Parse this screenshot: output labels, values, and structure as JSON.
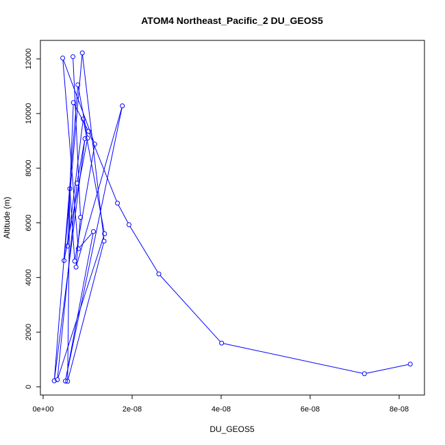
{
  "chart_data": {
    "type": "line",
    "title": "ATOM4 Northeast_Pacific_2 DU_GEOS5",
    "xlabel": "DU_GEOS5",
    "ylabel": "Altitude (m)",
    "xlim": [
      0,
      8.6e-08
    ],
    "ylim": [
      0,
      12400
    ],
    "xticks": [
      0,
      2e-08,
      4e-08,
      6e-08,
      8e-08
    ],
    "xtick_labels": [
      "0e+00",
      "2e-08",
      "4e-08",
      "6e-08",
      "8e-08"
    ],
    "yticks": [
      0,
      2000,
      4000,
      6000,
      8000,
      10000,
      12000
    ],
    "ytick_labels": [
      "0",
      "2000",
      "4000",
      "6000",
      "8000",
      "10000",
      "12000"
    ],
    "color": "#0000ff",
    "marker": "open-circle",
    "grid": false,
    "series": [
      {
        "x": [
          8.25e-08,
          7.22e-08,
          4.01e-08,
          2.6e-08,
          1.93e-08,
          1.67e-08,
          1.02e-08,
          6.8e-09,
          5.5e-09,
          9e-09,
          1.38e-08,
          3.2e-09,
          7.6e-09,
          9.4e-09,
          2.5e-09,
          7.8e-09,
          1e-08,
          4.7e-09,
          8.8e-09,
          1.37e-08,
          5.5e-09,
          6e-09,
          7.1e-09,
          1.16e-08,
          4.4e-09,
          7.9e-09,
          1.13e-08,
          5e-09,
          1.78e-08,
          7.4e-09,
          8.4e-09,
          6.7e-09
        ],
        "y": [
          830,
          480,
          1600,
          4130,
          5930,
          6720,
          9350,
          10400,
          5150,
          9800,
          5600,
          260,
          7450,
          9080,
          220,
          11050,
          9100,
          4620,
          12220,
          5330,
          200,
          7250,
          4600,
          8880,
          12030,
          5050,
          5680,
          210,
          10280,
          4380,
          6200,
          12080
        ]
      }
    ]
  }
}
